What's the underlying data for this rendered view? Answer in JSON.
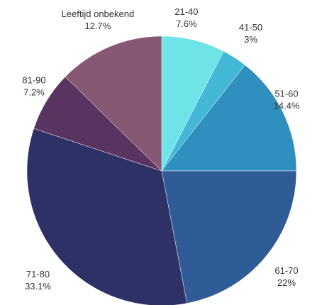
{
  "chart_data": {
    "type": "pie",
    "title": "",
    "start_angle_deg": 0,
    "direction": "clockwise",
    "slices": [
      {
        "label": "21-40",
        "value": 7.6,
        "value_label": "7.6%",
        "color": "#6EE3E8"
      },
      {
        "label": "41-50",
        "value": 3,
        "value_label": "3%",
        "color": "#42B8D6"
      },
      {
        "label": "51-60",
        "value": 14.4,
        "value_label": "14.4%",
        "color": "#2F8FBE"
      },
      {
        "label": "61-70",
        "value": 22,
        "value_label": "22%",
        "color": "#2F5B96"
      },
      {
        "label": "71-80",
        "value": 33.1,
        "value_label": "33.1%",
        "color": "#2E3166"
      },
      {
        "label": "81-90",
        "value": 7.2,
        "value_label": "7.2%",
        "color": "#5A3460"
      },
      {
        "label": "Leeftijd onbekend",
        "value": 12.7,
        "value_label": "12.7%",
        "color": "#875873"
      }
    ]
  }
}
